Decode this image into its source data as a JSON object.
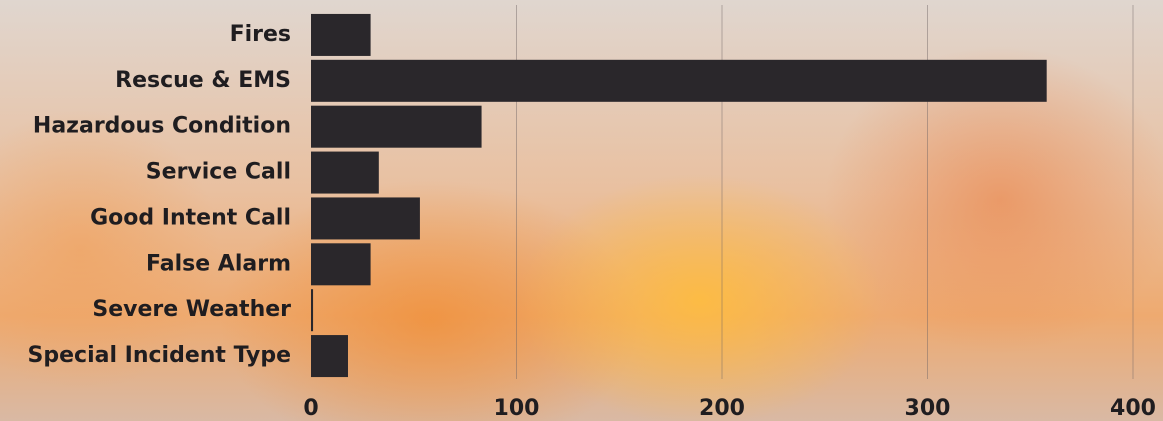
{
  "chart_data": {
    "type": "barh",
    "categories": [
      "Fires",
      "Rescue & EMS",
      "Hazardous Condition",
      "Service Call",
      "Good Intent Call",
      "False Alarm",
      "Severe Weather",
      "Special Incident Type"
    ],
    "values": [
      29,
      358,
      83,
      33,
      53,
      29,
      1,
      18
    ],
    "color": "#2a272b",
    "xlim": [
      0,
      400
    ],
    "xticks": [
      0,
      100,
      200,
      300,
      400
    ],
    "grid": true
  }
}
